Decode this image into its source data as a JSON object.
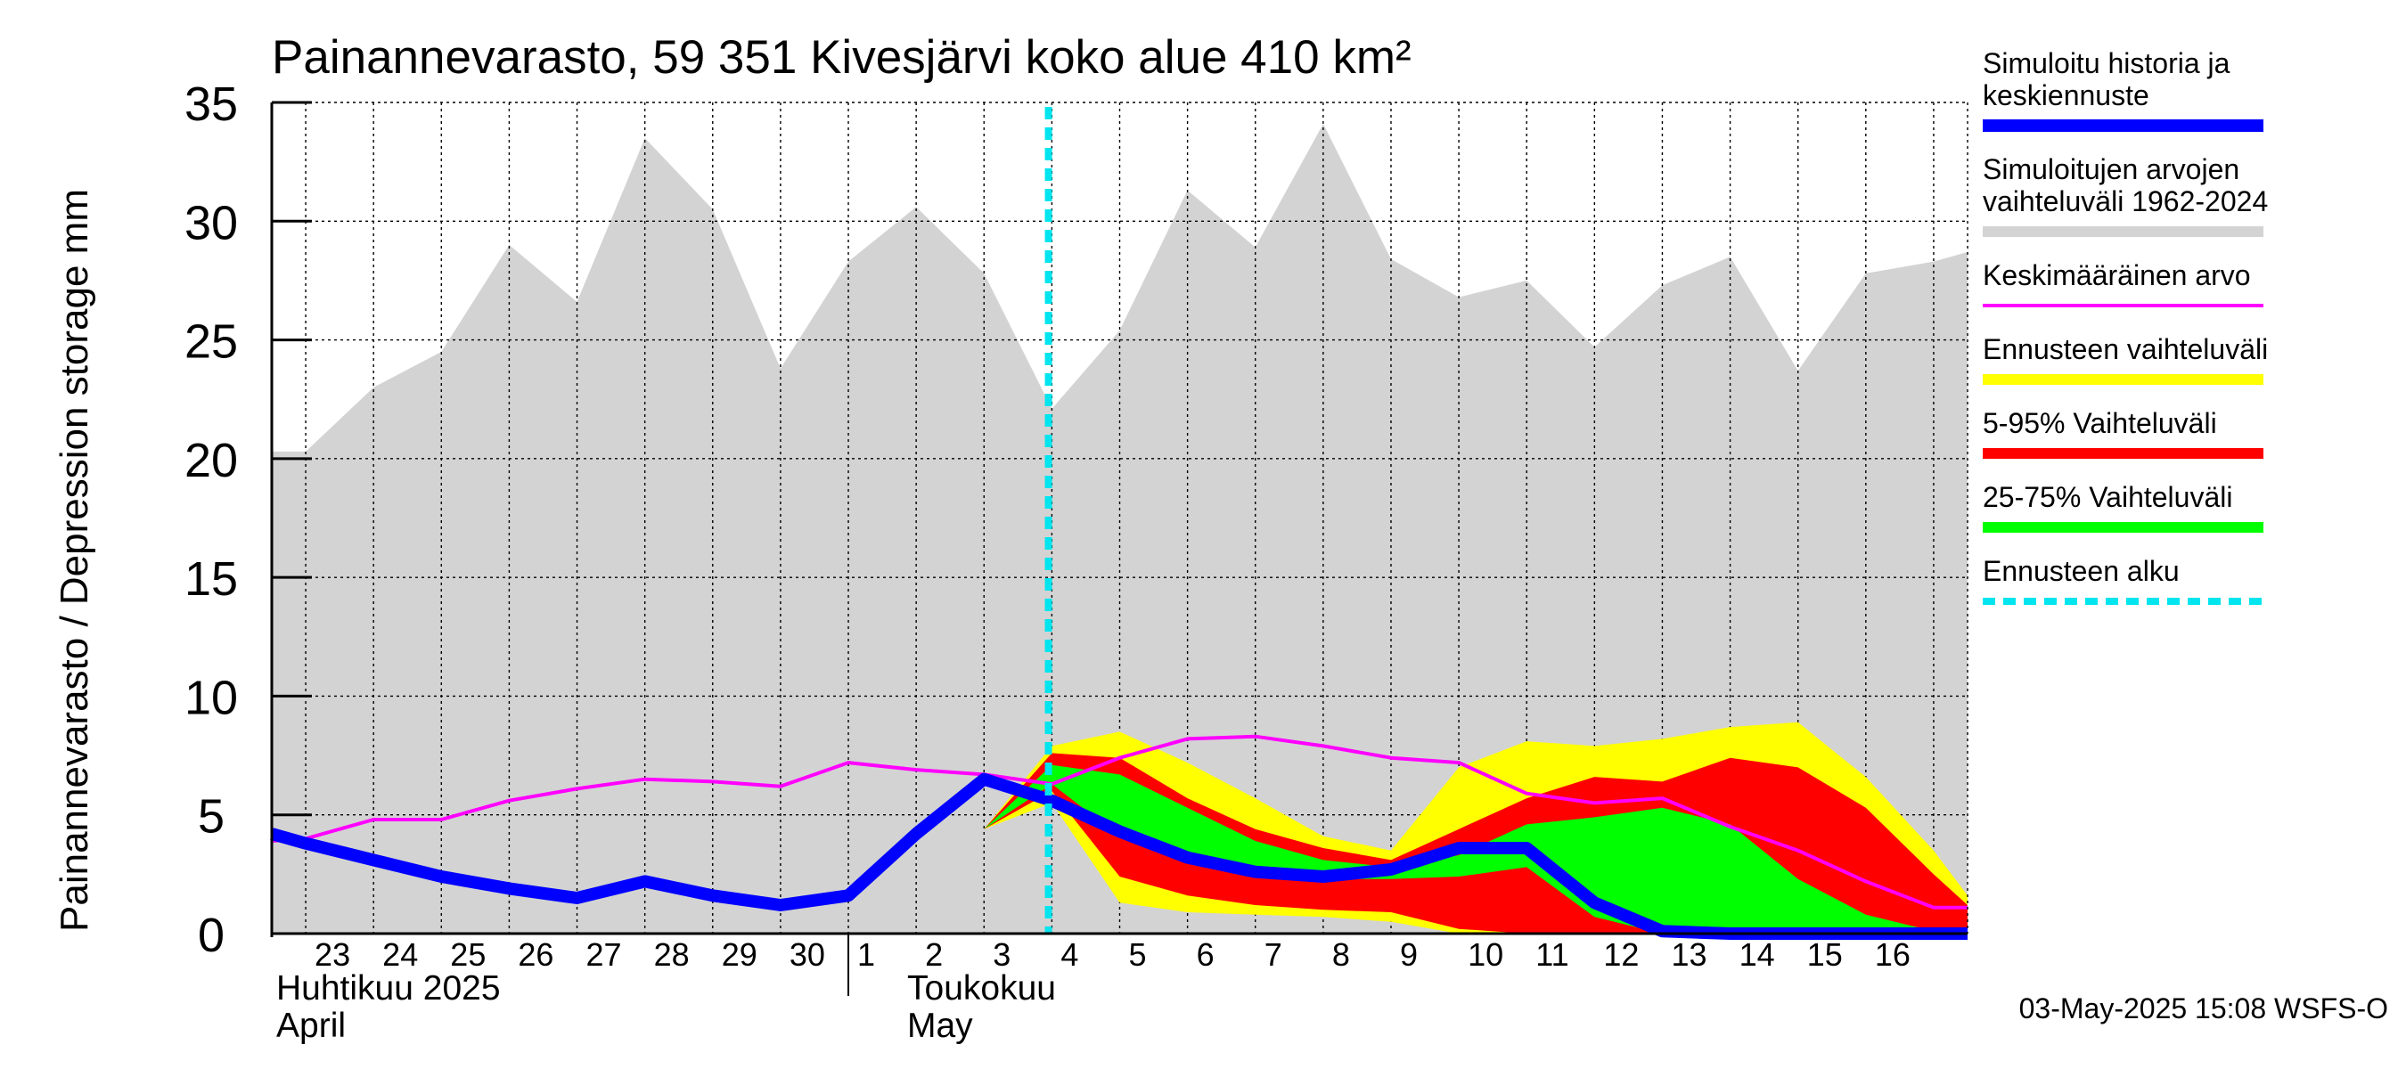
{
  "chart_data": {
    "type": "area",
    "title": "Painannevarasto, 59 351 Kivesjärvi koko alue 410 km²",
    "ylabel": "Painannevarasto / Depression storage    mm",
    "ylim": [
      0,
      35
    ],
    "yticks": [
      "0",
      "5",
      "10",
      "15",
      "20",
      "25",
      "30",
      "35"
    ],
    "grid": true,
    "legend_position": "right",
    "x_day_labels": [
      "23",
      "24",
      "25",
      "26",
      "27",
      "28",
      "29",
      "30",
      "1",
      "2",
      "3",
      "4",
      "5",
      "6",
      "7",
      "8",
      "9",
      "10",
      "11",
      "12",
      "13",
      "14",
      "15",
      "16"
    ],
    "month_labels": [
      {
        "fi": "Huhtikuu  2025",
        "en": "April"
      },
      {
        "fi": "Toukokuu",
        "en": "May"
      }
    ],
    "forecast_start_day": 3,
    "timestamp": "03-May-2025 15:08 WSFS-O",
    "days": [
      -8.5,
      -8,
      -7,
      -6,
      -5,
      -4,
      -3,
      -2,
      -1,
      0,
      1,
      2,
      3,
      4,
      5,
      6,
      7,
      8,
      9,
      10,
      11,
      12,
      13,
      14,
      15,
      16,
      16.5
    ],
    "series": [
      {
        "name": "Simuloitujen arvojen vaihteluväli 1962-2024",
        "color": "#d3d3d3",
        "upper": [
          20.3,
          20.3,
          23,
          24.5,
          29,
          26.6,
          33.5,
          30.5,
          23.8,
          28.3,
          30.6,
          27.8,
          22.1,
          25.4,
          31.3,
          28.9,
          34.1,
          28.4,
          26.8,
          27.5,
          24.7,
          27.3,
          28.5,
          23.7,
          27.8,
          28.3,
          28.7
        ],
        "lower": [
          0,
          0,
          0,
          0,
          0,
          0,
          0,
          0,
          0,
          0,
          0,
          0,
          0,
          0,
          0,
          0,
          0,
          0,
          0,
          0,
          0,
          0,
          0,
          0,
          0,
          0,
          0
        ]
      },
      {
        "name": "Ennusteen vaihteluväli",
        "color": "#ffff00",
        "days": [
          2,
          3,
          4,
          5,
          6,
          7,
          8,
          9,
          10,
          11,
          12,
          13,
          14,
          15,
          16,
          16.5
        ],
        "upper": [
          4.4,
          7.9,
          8.5,
          7.2,
          5.7,
          4.1,
          3.5,
          7.0,
          8.1,
          7.9,
          8.2,
          8.7,
          8.9,
          6.6,
          3.5,
          1.6
        ],
        "lower": [
          4.4,
          5.5,
          1.3,
          0.9,
          0.8,
          0.7,
          0.5,
          0,
          0,
          0,
          0,
          0,
          0,
          0,
          0,
          0
        ]
      },
      {
        "name": "5-95% Vaihteluväli",
        "color": "#ff0000",
        "days": [
          2,
          3,
          4,
          5,
          6,
          7,
          8,
          9,
          10,
          11,
          12,
          13,
          14,
          15,
          16,
          16.5
        ],
        "upper": [
          4.4,
          7.6,
          7.4,
          5.7,
          4.4,
          3.6,
          3.1,
          4.4,
          5.7,
          6.6,
          6.4,
          7.4,
          7.0,
          5.3,
          2.5,
          1.2
        ],
        "lower": [
          4.4,
          6.0,
          2.4,
          1.6,
          1.2,
          1.0,
          0.9,
          0.2,
          0,
          0,
          0,
          0,
          0,
          0,
          0,
          0
        ]
      },
      {
        "name": "25-75% Vaihteluväli",
        "color": "#00ff00",
        "days": [
          2,
          3,
          4,
          5,
          6,
          7,
          8,
          9,
          10,
          11,
          12,
          13,
          14,
          15,
          16,
          16.5
        ],
        "upper": [
          4.4,
          7.1,
          6.7,
          5.3,
          3.9,
          3.1,
          2.8,
          3.3,
          4.6,
          4.9,
          5.3,
          4.6,
          2.3,
          0.8,
          0.1,
          0
        ],
        "lower": [
          4.4,
          6.3,
          4.1,
          3.1,
          2.6,
          2.3,
          2.3,
          2.4,
          2.8,
          0.7,
          0,
          0,
          0,
          0,
          0,
          0
        ]
      },
      {
        "name": "Keskimääräinen arvo",
        "color": "#ff00ff",
        "x": [
          -8.5,
          -8,
          -7,
          -6,
          -5,
          -4,
          -3,
          -2,
          -1,
          0,
          1,
          2,
          3,
          4,
          5,
          6,
          7,
          8,
          9,
          10,
          11,
          12,
          13,
          14,
          15,
          16,
          16.5
        ],
        "values": [
          3.9,
          4.0,
          4.8,
          4.8,
          5.6,
          6.1,
          6.5,
          6.4,
          6.2,
          7.2,
          6.9,
          6.7,
          6.3,
          7.4,
          8.2,
          8.3,
          7.9,
          7.4,
          7.2,
          5.9,
          5.5,
          5.7,
          4.5,
          3.5,
          2.2,
          1.1,
          1.1
        ]
      },
      {
        "name": "Simuloitu historia ja keskiennuste",
        "color": "#0000ff",
        "x": [
          -8.5,
          -8,
          -7,
          -6,
          -5,
          -4,
          -3,
          -2,
          -1,
          0,
          1,
          2,
          3,
          4,
          5,
          6,
          7,
          8,
          9,
          10,
          11,
          12,
          13,
          14,
          15,
          16,
          16.5
        ],
        "values": [
          4.2,
          3.8,
          3.1,
          2.4,
          1.9,
          1.5,
          2.2,
          1.6,
          1.2,
          1.6,
          4.2,
          6.5,
          5.6,
          4.3,
          3.2,
          2.6,
          2.4,
          2.7,
          3.6,
          3.6,
          1.3,
          0.1,
          0,
          0,
          0,
          0,
          0
        ]
      }
    ],
    "legend": [
      {
        "label": "Simuloitu historia ja keskiennuste",
        "color": "#0000ff",
        "style": "thick"
      },
      {
        "label": "Simuloitujen arvojen vaihteluväli 1962-2024",
        "color": "#d3d3d3",
        "style": "band"
      },
      {
        "label": "Keskimääräinen arvo",
        "color": "#ff00ff",
        "style": "line"
      },
      {
        "label": "Ennusteen vaihteluväli",
        "color": "#ffff00",
        "style": "band"
      },
      {
        "label": "5-95% Vaihteluväli",
        "color": "#ff0000",
        "style": "band"
      },
      {
        "label": "25-75% Vaihteluväli",
        "color": "#00ff00",
        "style": "band"
      },
      {
        "label": "Ennusteen alku",
        "color": "#00e5ee",
        "style": "dashed"
      }
    ]
  }
}
